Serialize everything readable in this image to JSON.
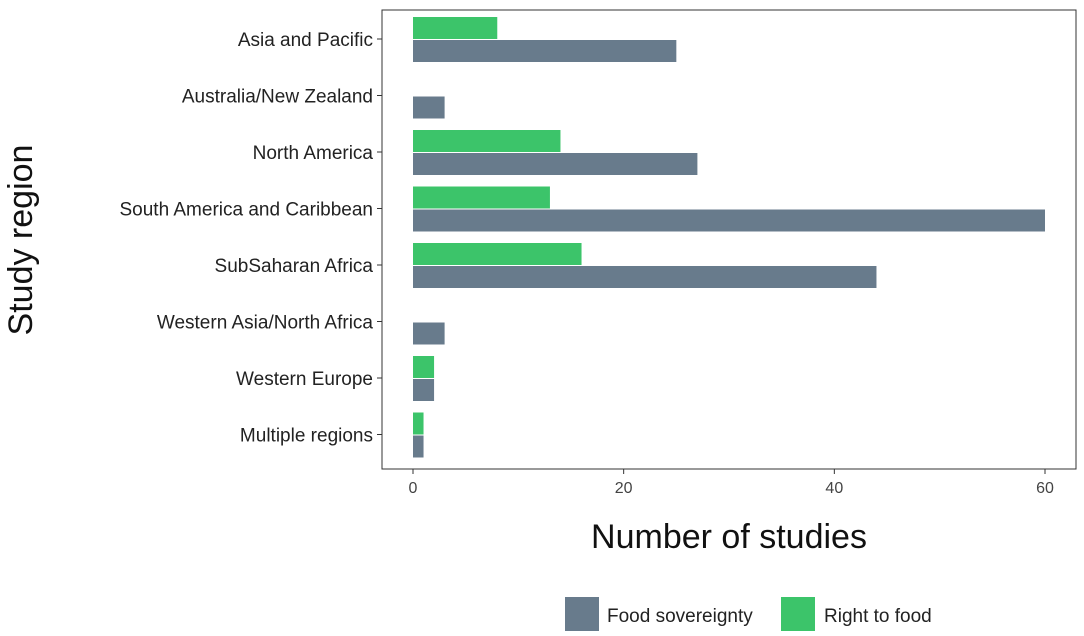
{
  "chart_data": {
    "type": "bar",
    "orientation": "horizontal",
    "categories": [
      "Asia and Pacific",
      "Australia/New Zealand",
      "North America",
      "South America and Caribbean",
      "SubSaharan Africa",
      "Western Asia/North Africa",
      "Western Europe",
      "Multiple regions"
    ],
    "series": [
      {
        "name": "Food sovereignty",
        "color": "#687b8c",
        "values": [
          25,
          3,
          27,
          60,
          44,
          3,
          2,
          1
        ]
      },
      {
        "name": "Right to food",
        "color": "#3cc46a",
        "values": [
          8,
          0,
          14,
          13,
          16,
          0,
          2,
          1
        ]
      }
    ],
    "xlabel": "Number of studies",
    "ylabel": "Study region",
    "xlim": [
      -3,
      63
    ],
    "xticks": [
      0,
      20,
      40,
      60
    ],
    "grid": false,
    "legend_position": "bottom"
  }
}
